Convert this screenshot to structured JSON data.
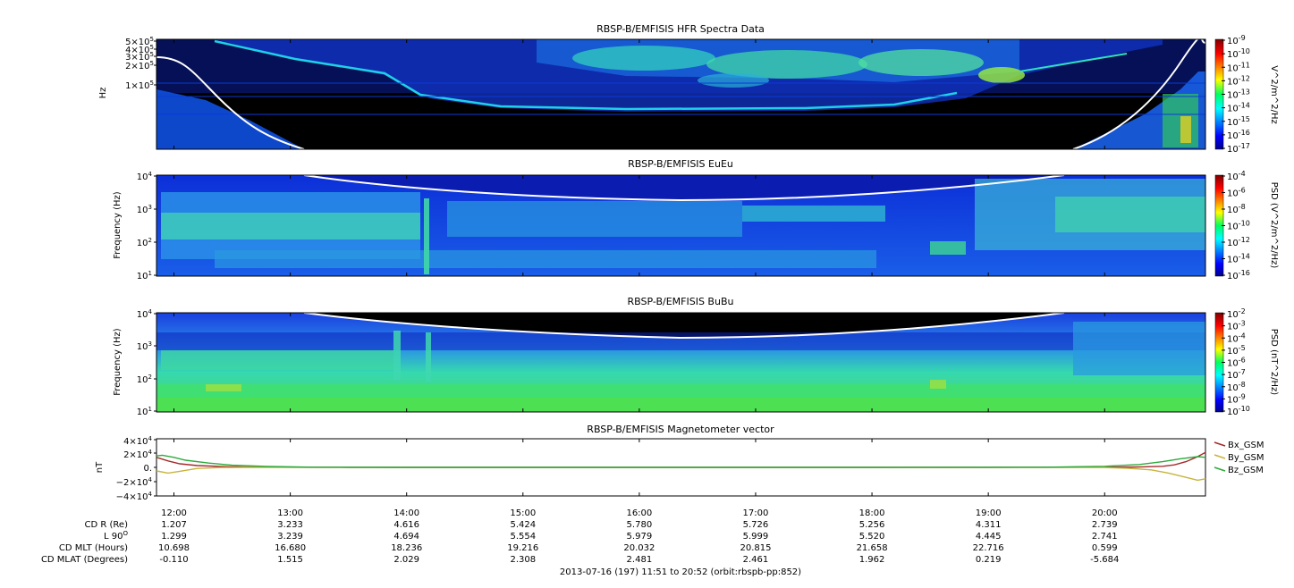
{
  "figure_footer": "2013-07-16 (197) 11:51 to 20:52 (orbit:rbspb-pp:852)",
  "colors": {
    "background": "#000000",
    "cyclotron_line": "#ffffff",
    "bx": "#a52a2a",
    "by": "#c8b43c",
    "bz": "#2eaa3c"
  },
  "chart_data": [
    {
      "type": "heatmap",
      "title": "RBSP-B/EMFISIS  HFR Spectra Data",
      "ylabel": "Hz",
      "yscale": "log",
      "y_tick_labels": [
        "5×10^5",
        "4×10^5",
        "3×10^5",
        "2×10^5",
        "1×10^5"
      ],
      "y_tick_values": [
        500000,
        400000,
        300000,
        200000,
        100000
      ],
      "ylim": [
        10000,
        500000
      ],
      "colorbar": {
        "label": "V^2/m^2/Hz",
        "scale": "log",
        "range": [
          1e-17,
          1e-09
        ],
        "tick_labels": [
          "10^-9",
          "10^-10",
          "10^-11",
          "10^-12",
          "10^-13",
          "10^-14",
          "10^-15",
          "10^-16",
          "10^-17"
        ]
      }
    },
    {
      "type": "heatmap",
      "title": "RBSP-B/EMFISIS  EuEu",
      "ylabel": "Frequency (Hz)",
      "yscale": "log",
      "y_tick_labels": [
        "10^4",
        "10^3",
        "10^2",
        "10^1"
      ],
      "y_tick_values": [
        10000,
        1000,
        100,
        10
      ],
      "ylim": [
        10,
        10000
      ],
      "colorbar": {
        "label": "PSD (V^2/m^2/Hz)",
        "scale": "log",
        "range": [
          1e-16,
          0.0001
        ],
        "tick_labels": [
          "10^-4",
          "10^-6",
          "10^-8",
          "10^-10",
          "10^-12",
          "10^-14",
          "10^-16"
        ]
      }
    },
    {
      "type": "heatmap",
      "title": "RBSP-B/EMFISIS  BuBu",
      "ylabel": "Frequency (Hz)",
      "yscale": "log",
      "y_tick_labels": [
        "10^4",
        "10^3",
        "10^2",
        "10^1"
      ],
      "y_tick_values": [
        10000,
        1000,
        100,
        10
      ],
      "ylim": [
        10,
        10000
      ],
      "colorbar": {
        "label": "PSD (nT^2/Hz)",
        "scale": "log",
        "range": [
          1e-10,
          0.01
        ],
        "tick_labels": [
          "10^-2",
          "10^-3",
          "10^-4",
          "10^-5",
          "10^-6",
          "10^-7",
          "10^-8",
          "10^-9",
          "10^-10"
        ]
      }
    },
    {
      "type": "line",
      "title": "RBSP-B/EMFISIS  Magnetometer vector",
      "ylabel": "nT",
      "y_tick_labels": [
        "4×10^4",
        "2×10^4",
        "0",
        "-2×10^4",
        "-4×10^4"
      ],
      "y_tick_values": [
        40000,
        20000,
        0,
        -20000,
        -40000
      ],
      "ylim": [
        -40000,
        40000
      ],
      "xlim_hours": [
        11.85,
        20.8667
      ],
      "legend_position": "right",
      "series": [
        {
          "name": "Bx_GSM",
          "color": "#a52a2a",
          "x": [
            11.85,
            11.95,
            12.05,
            12.2,
            12.4,
            12.6,
            12.9,
            13.5,
            15,
            17,
            19,
            20.0,
            20.3,
            20.5,
            20.6,
            20.7,
            20.8,
            20.8667
          ],
          "y": [
            14000,
            9000,
            5000,
            2500,
            1200,
            600,
            200,
            0,
            0,
            0,
            0,
            200,
            500,
            1500,
            3500,
            8000,
            15000,
            21000
          ]
        },
        {
          "name": "By_GSM",
          "color": "#c8b43c",
          "x": [
            11.85,
            11.95,
            12.05,
            12.2,
            12.4,
            12.6,
            12.9,
            13.5,
            15,
            17,
            19,
            20.0,
            20.2,
            20.4,
            20.55,
            20.7,
            20.8,
            20.8667
          ],
          "y": [
            -5000,
            -8000,
            -5500,
            -1500,
            -300,
            0,
            0,
            0,
            0,
            0,
            0,
            -300,
            -1200,
            -3500,
            -8000,
            -14000,
            -18000,
            -16000
          ]
        },
        {
          "name": "Bz_GSM",
          "color": "#2eaa3c",
          "x": [
            11.85,
            11.9,
            12.0,
            12.1,
            12.3,
            12.5,
            12.8,
            13.2,
            14,
            16,
            18,
            19.5,
            20.0,
            20.3,
            20.5,
            20.65,
            20.8,
            20.8667
          ],
          "y": [
            16000,
            17000,
            14000,
            10000,
            6000,
            3000,
            1200,
            300,
            0,
            0,
            0,
            300,
            1500,
            4000,
            8000,
            12000,
            15000,
            14000
          ]
        }
      ]
    }
  ],
  "time_axis": {
    "tick_hours": [
      12,
      13,
      14,
      15,
      16,
      17,
      18,
      19,
      20
    ],
    "tick_labels": [
      "12:00",
      "13:00",
      "14:00",
      "15:00",
      "16:00",
      "17:00",
      "18:00",
      "19:00",
      "20:00"
    ]
  },
  "ephemeris": {
    "row_labels": [
      "CD R (Re)",
      "L 90°",
      "CD MLT (Hours)",
      "CD MLAT (Degrees)"
    ],
    "rows": [
      [
        "1.207",
        "3.233",
        "4.616",
        "5.424",
        "5.780",
        "5.726",
        "5.256",
        "4.311",
        "2.739"
      ],
      [
        "1.299",
        "3.239",
        "4.694",
        "5.554",
        "5.979",
        "5.999",
        "5.520",
        "4.445",
        "2.741"
      ],
      [
        "10.698",
        "16.680",
        "18.236",
        "19.216",
        "20.032",
        "20.815",
        "21.658",
        "22.716",
        "0.599"
      ],
      [
        "-0.110",
        "1.515",
        "2.029",
        "2.308",
        "2.481",
        "2.461",
        "1.962",
        "0.219",
        "-5.684"
      ]
    ]
  }
}
